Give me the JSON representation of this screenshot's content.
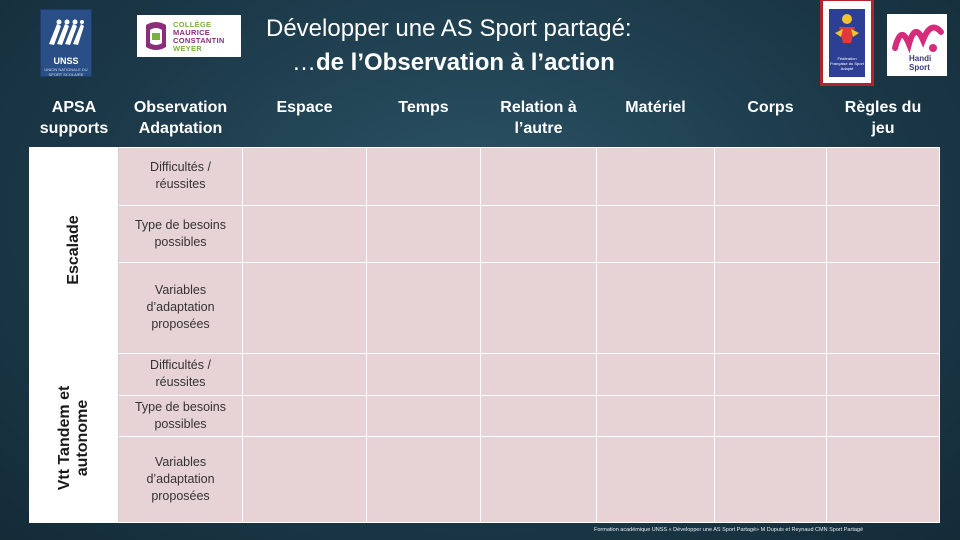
{
  "header": {
    "title_line1": "Développer une AS Sport partagé:",
    "title_line2_prefix": "…",
    "title_line2_bold": "de l’Observation à l’action"
  },
  "logos": {
    "unss": {
      "text": "UNSS",
      "sub": "UNION NATIONALE DU SPORT SCOLAIRE"
    },
    "college": {
      "line1": "COLLÈGE",
      "line2": "MAURICE",
      "line3": "CONSTANTIN",
      "line4": "WEYER"
    },
    "federation": {
      "text": "Fédération Française du Sport Adapté"
    },
    "handisport": {
      "line1": "Handi",
      "line2": "Sport"
    }
  },
  "table": {
    "headers": [
      {
        "line1": "APSA",
        "line2": "supports"
      },
      {
        "line1": "Observation",
        "line2": "Adaptation"
      },
      {
        "line1": "Espace",
        "line2": ""
      },
      {
        "line1": "Temps",
        "line2": ""
      },
      {
        "line1": "Relation à",
        "line2": "l’autre"
      },
      {
        "line1": "Matériel",
        "line2": ""
      },
      {
        "line1": "Corps",
        "line2": ""
      },
      {
        "line1": "Règles du",
        "line2": "jeu"
      }
    ],
    "activities": [
      {
        "name_line1": "Escalade",
        "name_line2": "",
        "rows": [
          {
            "line1": "Difficultés /",
            "line2": "réussites",
            "line3": ""
          },
          {
            "line1": "Type de besoins",
            "line2": "possibles",
            "line3": ""
          },
          {
            "line1": "Variables",
            "line2": "d’adaptation",
            "line3": "proposées"
          }
        ]
      },
      {
        "name_line1": "Vtt Tandem et",
        "name_line2": "autonome",
        "rows": [
          {
            "line1": "Difficultés /",
            "line2": "réussites",
            "line3": ""
          },
          {
            "line1": "Type de besoins",
            "line2": "possibles",
            "line3": ""
          },
          {
            "line1": "Variables",
            "line2": "d’adaptation",
            "line3": "proposées"
          }
        ]
      }
    ]
  },
  "footer": {
    "text": "Formation académique UNSS « Développer une AS Sport Partagé» M Dupuis et Reynaud CMN Sport Partagé"
  },
  "colors": {
    "background": "#1f4050",
    "cell": "#e7d2d5",
    "frame": "#b2232f"
  }
}
